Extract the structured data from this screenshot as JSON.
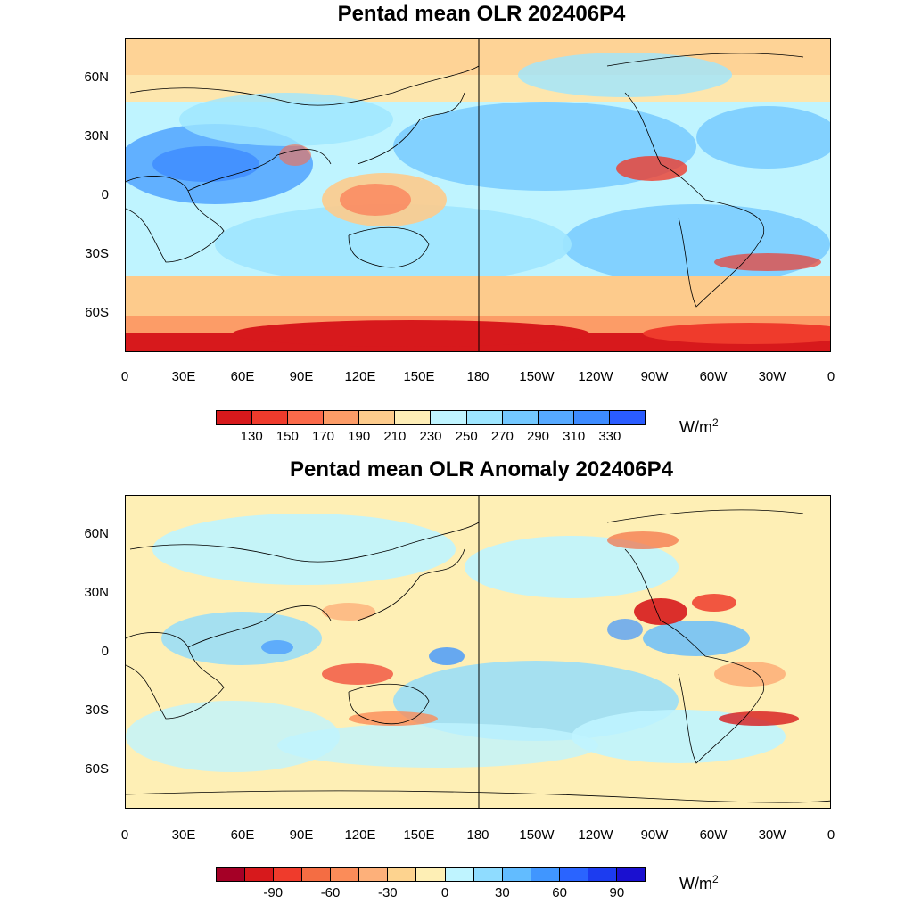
{
  "panels": [
    {
      "title": "Pentad mean OLR 202406P4",
      "lat_labels": [
        "60N",
        "30N",
        "0",
        "30S",
        "60S"
      ],
      "lon_labels": [
        "0",
        "30E",
        "60E",
        "90E",
        "120E",
        "150E",
        "180",
        "150W",
        "120W",
        "90W",
        "60W",
        "30W",
        "0"
      ],
      "colorbar": {
        "colors": [
          "#d7191c",
          "#ef3b2c",
          "#fb6a4a",
          "#fc9c67",
          "#fdcb8c",
          "#feeeb7",
          "#bff4ff",
          "#9ee6ff",
          "#73c8ff",
          "#56a9ff",
          "#3d8bff",
          "#2a5cff"
        ],
        "labels": [
          "130",
          "150",
          "170",
          "190",
          "210",
          "230",
          "250",
          "270",
          "290",
          "310",
          "330"
        ],
        "unit": "W/m",
        "unit_sup": "2"
      }
    },
    {
      "title": "Pentad mean OLR Anomaly 202406P4",
      "lat_labels": [
        "60N",
        "30N",
        "0",
        "30S",
        "60S"
      ],
      "lon_labels": [
        "0",
        "30E",
        "60E",
        "90E",
        "120E",
        "150E",
        "180",
        "150W",
        "120W",
        "90W",
        "60W",
        "30W",
        "0"
      ],
      "colorbar": {
        "colors": [
          "#a50026",
          "#d7191c",
          "#ef3b2c",
          "#f46d43",
          "#fb8c59",
          "#fdb07a",
          "#fdd38f",
          "#feefb5",
          "#bff4ff",
          "#8fdcff",
          "#62bcff",
          "#4096ff",
          "#2a64ff",
          "#1c3cf0",
          "#1a10d0"
        ],
        "labels": [
          "-90",
          "-60",
          "-30",
          "0",
          "30",
          "60",
          "90"
        ],
        "unit": "W/m",
        "unit_sup": "2"
      }
    }
  ]
}
